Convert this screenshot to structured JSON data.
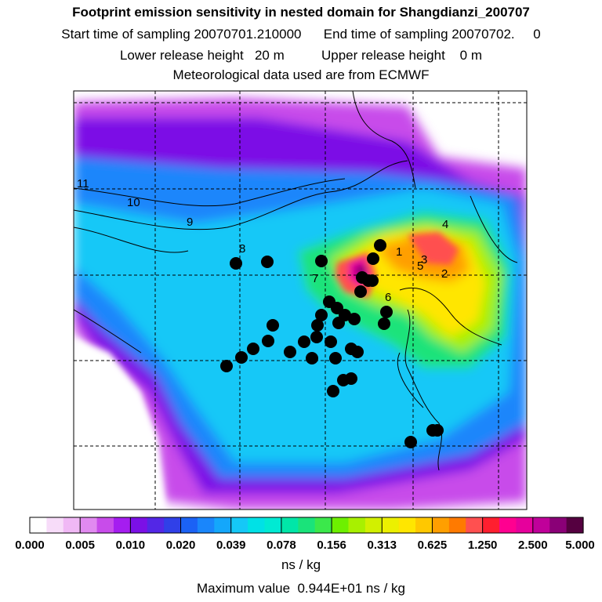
{
  "header": {
    "title": "Footprint emission sensitivity in nested domain for Shangdianzi_200707",
    "line2": "Start time of sampling 20070701.210000      End time of sampling 20070702.     0",
    "line3": "Lower release height   20 m          Upper release height    0 m",
    "line4": "Meteorological data used are from ECMWF"
  },
  "chart_data": {
    "type": "heatmap",
    "title": "Footprint emission sensitivity in nested domain for Shangdianzi_200707",
    "grid": true,
    "colorbar": {
      "orientation": "horizontal",
      "tick_labels": [
        "0.000",
        "0.005",
        "0.010",
        "0.020",
        "0.039",
        "0.078",
        "0.156",
        "0.313",
        "0.625",
        "1.250",
        "2.500",
        "5.000"
      ],
      "unit": "ns / kg",
      "colors": [
        "#ffffff",
        "#f7dcf9",
        "#f0b8f5",
        "#e18af0",
        "#c84cea",
        "#a51df0",
        "#7b10e6",
        "#5327e6",
        "#3040e8",
        "#1b62f5",
        "#1a86fb",
        "#14a7fb",
        "#15c8f7",
        "#00e1e6",
        "#00ead3",
        "#00e6a8",
        "#1ae37a",
        "#3be84b",
        "#6df000",
        "#a8f000",
        "#d2f000",
        "#ecf000",
        "#ffe600",
        "#ffc800",
        "#ff9f00",
        "#ff7a00",
        "#ff5050",
        "#ff1f2f",
        "#ff0090",
        "#e6009c",
        "#c0009a",
        "#8a0077",
        "#550040"
      ]
    },
    "markers": [
      {
        "label": "1"
      },
      {
        "label": "2"
      },
      {
        "label": "3"
      },
      {
        "label": "4"
      },
      {
        "label": "5"
      },
      {
        "label": "6"
      },
      {
        "label": "7"
      },
      {
        "label": "8"
      },
      {
        "label": "9"
      },
      {
        "label": "10"
      },
      {
        "label": "11"
      }
    ],
    "maximum_text": "Maximum value  0.944E+01 ns / kg"
  },
  "footer": {
    "unit": "ns / kg",
    "maximum": "Maximum value  0.944E+01 ns / kg"
  }
}
